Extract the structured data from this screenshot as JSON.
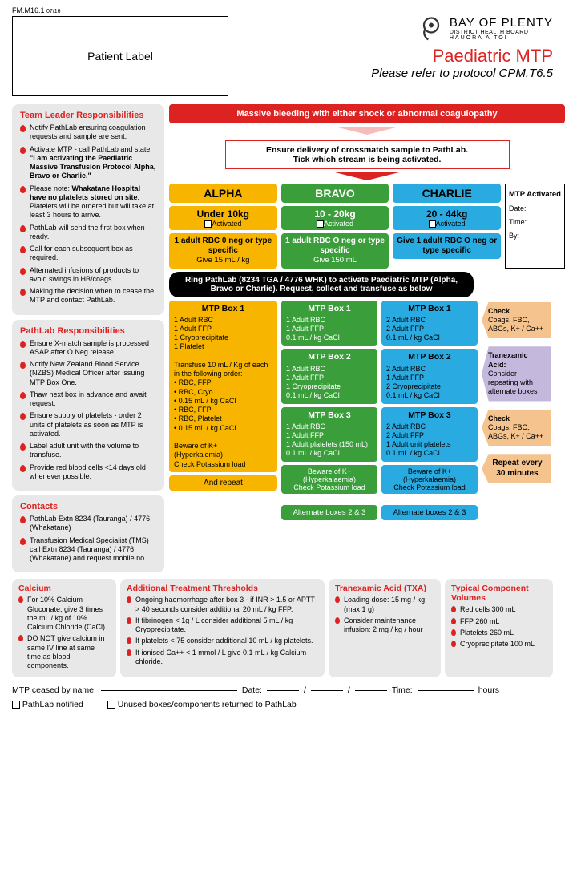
{
  "form_id": "FM.M16.1",
  "form_date": "07/16",
  "patient_label": "Patient  Label",
  "org": {
    "main": "BAY OF PLENTY",
    "sub1": "DISTRICT HEALTH BOARD",
    "sub2": "HAUORA A TOI"
  },
  "title": "Paediatric MTP",
  "subtitle": "Please refer to protocol CPM.T6.5",
  "team_leader": {
    "heading": "Team Leader Responsibilities",
    "items": [
      "Notify PathLab ensuring coagulation requests and sample are sent.",
      "Activate MTP - call PathLab and state <b>\"I am activating the Paediatric Massive Transfusion Protocol Alpha, Bravo or Charlie.\"</b>",
      "Please note: <b>Whakatane Hospital have no platelets stored on site</b>. Platelets will be ordered but will take at least 3 hours to arrive.",
      "PathLab will send the first box when ready.",
      "Call for each subsequent box as required.",
      "Alternated infusions of products to avoid swings in HB/coags.",
      "Making the decision when to cease the MTP and contact PathLab."
    ]
  },
  "pathlab": {
    "heading": "PathLab Responsibilities",
    "items": [
      "Ensure X-match sample is processed ASAP after O Neg release.",
      "Notify New Zealand Blood Service (NZBS) Medical Officer after issuing MTP Box One.",
      "Thaw next box in advance and await request.",
      "Ensure supply of platelets - order 2 units of platelets as soon as MTP is activated.",
      "Label adult unit with the volume to transfuse.",
      "Provide red blood cells <14 days old whenever possible."
    ]
  },
  "contacts": {
    "heading": "Contacts",
    "items": [
      "PathLab Extn 8234 (Tauranga) / 4776 (Whakatane)",
      "Transfusion Medical Specialist (TMS) call Extn 8234 (Tauranga) / 4776 (Whakatane) and request mobile no."
    ]
  },
  "red_banner": "Massive bleeding with either shock or abnormal coagulopathy",
  "ensure_box": "Ensure delivery of crossmatch sample to PathLab.<br>Tick which stream is being activated.",
  "streams": {
    "alpha": {
      "name": "ALPHA",
      "weight": "Under 10kg",
      "activated": "Activated",
      "rbc": "<b>1 adult RBC 0 neg or type specific</b><br>Give 15 mL / kg"
    },
    "bravo": {
      "name": "BRAVO",
      "weight": "10 - 20kg",
      "activated": "Activated",
      "rbc": "<b>1 adult RBC O neg or type specific</b><br>Give 150 mL"
    },
    "charlie": {
      "name": "CHARLIE",
      "weight": "20 - 44kg",
      "activated": "Activated",
      "rbc": "<b>Give 1 adult RBC O neg or type specific</b>"
    }
  },
  "mtp_activated": {
    "heading": "MTP Activated",
    "date": "Date:",
    "time": "Time:",
    "by": "By:"
  },
  "black_banner": "Ring PathLab (8234 TGA / 4776 WHK) to activate Paediatric MTP (Alpha, Bravo or Charlie). Request, collect and transfuse as below",
  "alpha_box1": {
    "h": "MTP Box 1",
    "body": "1 Adult RBC<br>1 Adult FFP<br>1 Cryoprecipitate<br>1 Platelet<br><br>Transfuse 10 mL / Kg of each in the following order:<br>• RBC, FFP<br>• RBC, Cryo<br>• 0.15 mL / kg CaCl<br>• RBC, FFP<br>• RBC, Platelet<br>• 0.15 mL / kg CaCl<br><br>Beware of K+<br>(Hyperkalemia)<br>Check Potassium load"
  },
  "alpha_repeat": "And repeat",
  "bravo_box1": {
    "h": "MTP Box 1",
    "body": "1 Adult RBC<br>1 Adult FFP<br>0.1 mL / kg CaCl"
  },
  "bravo_box2": {
    "h": "MTP Box 2",
    "body": "1 Adult RBC<br>1 Adult FFP<br>1 Cryoprecipitate<br>0.1 mL / kg CaCl"
  },
  "bravo_box3": {
    "h": "MTP Box 3",
    "body": "1 Adult RBC<br>1 Adult FFP<br>1 Adult platelets (150 mL)<br>0.1 mL / kg CaCl"
  },
  "bravo_beware": "Beware of K+<br>(Hyperkalaemia)<br>Check Potassium load",
  "bravo_alt": "Alternate boxes 2 & 3",
  "charlie_box1": {
    "h": "MTP Box 1",
    "body": "2 Adult RBC<br>2 Adult FFP<br>0.1 mL / kg CaCl"
  },
  "charlie_box2": {
    "h": "MTP Box 2",
    "body": "2 Adult RBC<br>1 Adult FFP<br>2 Cryoprecipitate<br>0.1 mL / kg CaCl"
  },
  "charlie_box3": {
    "h": "MTP Box 3",
    "body": "2 Adult RBC<br>2 Adult FFP<br>1 Adult unit platelets<br>0.1 mL / kg CaCl"
  },
  "charlie_beware": "Beware of K+<br>(Hyperkalaemia)<br>Check Potassium load",
  "charlie_alt": "Alternate boxes 2 & 3",
  "check_tab": "<b>Check</b><br>Coags, FBC, ABGs, K+ / Ca++",
  "txa_tab": "<b>Tranexamic Acid:</b><br>Consider repeating with alternate boxes",
  "repeat_tab": "Repeat every 30 minutes",
  "calcium": {
    "heading": "Calcium",
    "items": [
      "For 10% Calcium Gluconate, give 3 times the mL / kg of 10% Calcium Chloride (CaCl).",
      "DO NOT give calcium in same IV line at same time as blood components."
    ]
  },
  "additional": {
    "heading": "Additional Treatment Thresholds",
    "items": [
      "Ongoing haemorrhage after box 3 - if INR > 1.5 or APTT > 40 seconds consider additional 20 mL / kg FFP.",
      "If fibrinogen < 1g / L consider additional 5 mL / kg Cryoprecipitate.",
      "If platelets < 75 consider additional 10 mL / kg platelets.",
      "If ionised Ca++ < 1 mmol / L give 0.1 mL / kg Calcium chloride."
    ]
  },
  "txa_panel": {
    "heading": "Tranexamic Acid (TXA)",
    "items": [
      "Loading dose: 15 mg / kg (max 1 g)",
      "Consider maintenance infusion: 2 mg / kg / hour"
    ]
  },
  "volumes": {
    "heading": "Typical Component Volumes",
    "items": [
      "Red cells 300 mL",
      "FFP 260 mL",
      "Platelets 260 mL",
      "Cryoprecipitate 100 mL"
    ]
  },
  "footer": {
    "ceased": "MTP ceased by name:",
    "date": "Date:",
    "time": "Time:",
    "hours": "hours",
    "pathlab_notified": "PathLab notified",
    "unused": "Unused boxes/components returned to PathLab"
  },
  "colors": {
    "alpha": "#f7b500",
    "bravo": "#3a9e3a",
    "charlie": "#29abe2",
    "red": "#d22"
  }
}
